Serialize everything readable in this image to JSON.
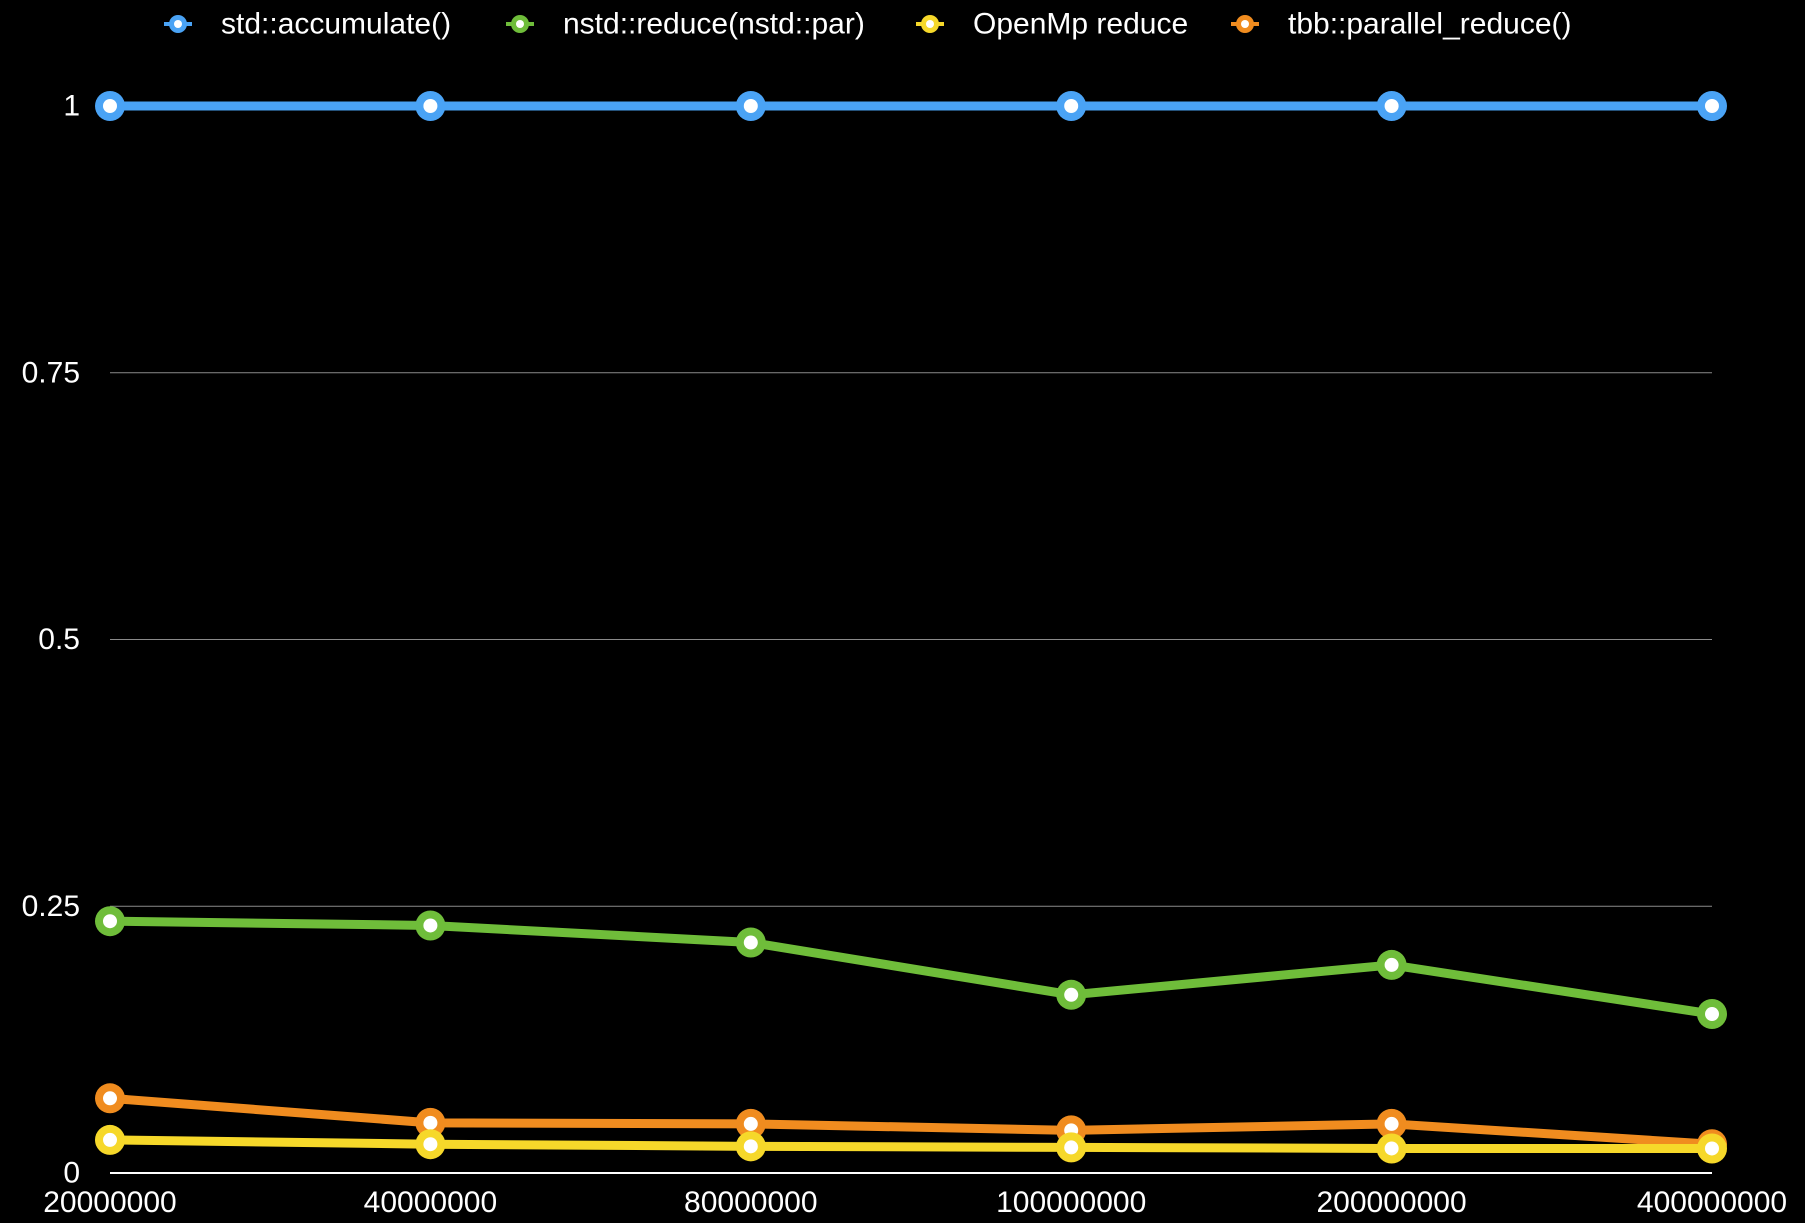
{
  "chart_data": {
    "type": "line",
    "title": "",
    "xlabel": "",
    "ylabel": "",
    "categories": [
      "20000000",
      "40000000",
      "80000000",
      "100000000",
      "200000000",
      "400000000"
    ],
    "ylim": [
      0,
      1
    ],
    "yticks": [
      0,
      0.25,
      0.5,
      0.75,
      1
    ],
    "ytick_labels": [
      "0",
      "0.25",
      "0.5",
      "0.75",
      "1"
    ],
    "grid": "horizontal",
    "legend_position": "top",
    "series": [
      {
        "name": "std::accumulate()",
        "color": "#4aa3f5",
        "values": [
          1,
          1,
          1,
          1,
          1,
          1
        ]
      },
      {
        "name": "nstd::reduce(nstd::par)",
        "color": "#6fbd3a",
        "values": [
          0.236,
          0.232,
          0.216,
          0.167,
          0.195,
          0.149
        ]
      },
      {
        "name": "OpenMp reduce",
        "color": "#f6d82a",
        "values": [
          0.031,
          0.027,
          0.025,
          0.024,
          0.023,
          0.023
        ]
      },
      {
        "name": "tbb::parallel_reduce()",
        "color": "#f08c1f",
        "values": [
          0.07,
          0.047,
          0.046,
          0.04,
          0.046,
          0.027
        ]
      }
    ],
    "draw_order": [
      3,
      2,
      1,
      0
    ]
  }
}
